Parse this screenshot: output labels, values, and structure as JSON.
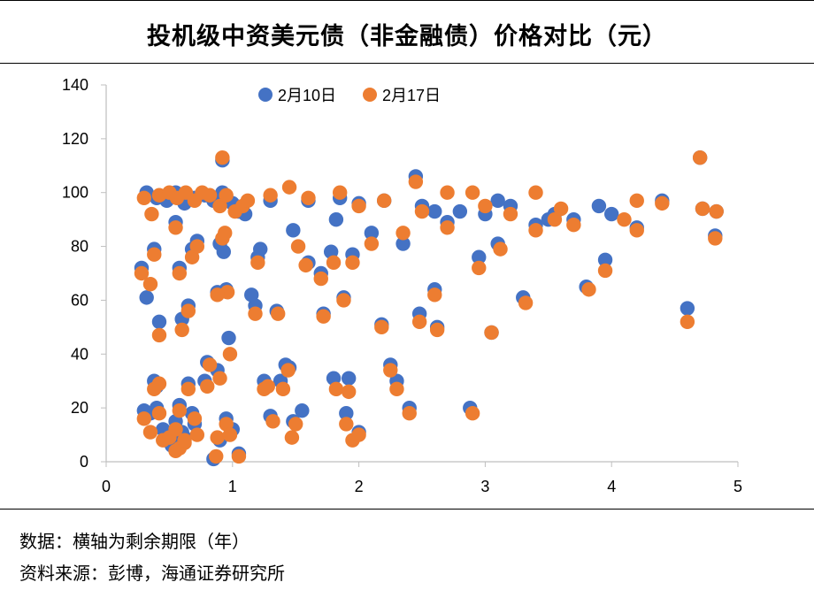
{
  "chart_data": {
    "type": "scatter",
    "title": "投机级中资美元债（非金融债）价格对比（元）",
    "xlabel": "",
    "ylabel": "",
    "xlim": [
      0,
      5
    ],
    "ylim": [
      0,
      140
    ],
    "xticks": [
      0,
      1,
      2,
      3,
      4,
      5
    ],
    "yticks": [
      0,
      20,
      40,
      60,
      80,
      100,
      120,
      140
    ],
    "grid": false,
    "legend_position": "top-center",
    "series": [
      {
        "name": "2月10日",
        "color": "#4472C4",
        "points": [
          [
            0.28,
            72
          ],
          [
            0.32,
            61
          ],
          [
            0.38,
            79
          ],
          [
            0.42,
            52
          ],
          [
            0.38,
            30
          ],
          [
            0.4,
            28
          ],
          [
            0.3,
            19
          ],
          [
            0.35,
            18
          ],
          [
            0.4,
            20
          ],
          [
            0.45,
            12
          ],
          [
            0.5,
            10
          ],
          [
            0.55,
            15
          ],
          [
            0.58,
            21
          ],
          [
            0.62,
            9
          ],
          [
            0.65,
            29
          ],
          [
            0.68,
            18
          ],
          [
            0.7,
            14
          ],
          [
            0.55,
            8
          ],
          [
            0.6,
            11
          ],
          [
            0.52,
            6
          ],
          [
            0.55,
            89
          ],
          [
            0.6,
            53
          ],
          [
            0.65,
            58
          ],
          [
            0.68,
            79
          ],
          [
            0.58,
            72
          ],
          [
            0.72,
            82
          ],
          [
            0.78,
            30
          ],
          [
            0.8,
            37
          ],
          [
            0.88,
            34
          ],
          [
            0.9,
            8
          ],
          [
            0.85,
            1
          ],
          [
            0.9,
            81
          ],
          [
            0.92,
            112
          ],
          [
            0.93,
            78
          ],
          [
            0.95,
            64
          ],
          [
            0.88,
            63
          ],
          [
            0.97,
            46
          ],
          [
            0.95,
            16
          ],
          [
            1.0,
            12
          ],
          [
            1.05,
            3
          ],
          [
            0.32,
            100
          ],
          [
            0.4,
            98
          ],
          [
            0.48,
            97
          ],
          [
            0.55,
            100
          ],
          [
            0.62,
            96
          ],
          [
            0.7,
            98
          ],
          [
            0.78,
            99
          ],
          [
            0.85,
            97
          ],
          [
            0.92,
            100
          ],
          [
            1.0,
            96
          ],
          [
            1.05,
            93
          ],
          [
            1.1,
            92
          ],
          [
            1.15,
            62
          ],
          [
            1.18,
            58
          ],
          [
            1.2,
            76
          ],
          [
            1.22,
            79
          ],
          [
            1.25,
            30
          ],
          [
            1.3,
            17
          ],
          [
            1.35,
            56
          ],
          [
            1.38,
            30
          ],
          [
            1.42,
            36
          ],
          [
            1.45,
            35
          ],
          [
            1.48,
            15
          ],
          [
            1.55,
            19
          ],
          [
            1.48,
            86
          ],
          [
            1.6,
            74
          ],
          [
            1.7,
            70
          ],
          [
            1.72,
            55
          ],
          [
            1.78,
            78
          ],
          [
            1.8,
            31
          ],
          [
            1.82,
            90
          ],
          [
            1.85,
            98
          ],
          [
            1.88,
            61
          ],
          [
            1.9,
            18
          ],
          [
            1.92,
            31
          ],
          [
            1.95,
            77
          ],
          [
            2.0,
            11
          ],
          [
            2.1,
            85
          ],
          [
            2.18,
            51
          ],
          [
            2.25,
            36
          ],
          [
            2.3,
            30
          ],
          [
            2.35,
            81
          ],
          [
            2.4,
            20
          ],
          [
            2.45,
            106
          ],
          [
            2.48,
            55
          ],
          [
            2.6,
            64
          ],
          [
            2.62,
            50
          ],
          [
            2.7,
            89
          ],
          [
            2.88,
            20
          ],
          [
            2.95,
            76
          ],
          [
            3.05,
            48
          ],
          [
            3.1,
            81
          ],
          [
            3.1,
            97
          ],
          [
            3.2,
            95
          ],
          [
            3.3,
            61
          ],
          [
            3.4,
            88
          ],
          [
            3.55,
            92
          ],
          [
            3.7,
            90
          ],
          [
            3.8,
            65
          ],
          [
            3.9,
            95
          ],
          [
            3.95,
            75
          ],
          [
            4.0,
            92
          ],
          [
            4.2,
            87
          ],
          [
            4.4,
            97
          ],
          [
            4.6,
            57
          ],
          [
            4.7,
            113
          ],
          [
            4.72,
            94
          ],
          [
            4.82,
            84
          ],
          [
            4.83,
            93
          ],
          [
            2.8,
            93
          ],
          [
            1.3,
            97
          ],
          [
            1.6,
            97
          ],
          [
            2.0,
            96
          ],
          [
            2.2,
            97
          ],
          [
            2.5,
            95
          ],
          [
            2.6,
            93
          ],
          [
            3.0,
            92
          ],
          [
            3.5,
            90
          ]
        ]
      },
      {
        "name": "2月17日",
        "color": "#ED7D31",
        "points": [
          [
            0.28,
            70
          ],
          [
            0.35,
            66
          ],
          [
            0.38,
            77
          ],
          [
            0.42,
            47
          ],
          [
            0.38,
            27
          ],
          [
            0.42,
            29
          ],
          [
            0.3,
            16
          ],
          [
            0.35,
            11
          ],
          [
            0.42,
            18
          ],
          [
            0.45,
            8
          ],
          [
            0.5,
            9
          ],
          [
            0.55,
            12
          ],
          [
            0.58,
            19
          ],
          [
            0.62,
            7
          ],
          [
            0.65,
            27
          ],
          [
            0.7,
            16
          ],
          [
            0.72,
            10
          ],
          [
            0.58,
            5
          ],
          [
            0.62,
            8
          ],
          [
            0.55,
            4
          ],
          [
            0.55,
            87
          ],
          [
            0.6,
            49
          ],
          [
            0.65,
            56
          ],
          [
            0.68,
            76
          ],
          [
            0.58,
            70
          ],
          [
            0.72,
            80
          ],
          [
            0.8,
            28
          ],
          [
            0.82,
            36
          ],
          [
            0.9,
            31
          ],
          [
            0.88,
            9
          ],
          [
            0.87,
            2
          ],
          [
            0.92,
            83
          ],
          [
            0.92,
            113
          ],
          [
            0.94,
            85
          ],
          [
            0.96,
            63
          ],
          [
            0.88,
            62
          ],
          [
            0.98,
            40
          ],
          [
            0.95,
            14
          ],
          [
            0.98,
            10
          ],
          [
            1.05,
            2
          ],
          [
            0.3,
            98
          ],
          [
            0.36,
            92
          ],
          [
            0.42,
            99
          ],
          [
            0.5,
            100
          ],
          [
            0.56,
            98
          ],
          [
            0.63,
            100
          ],
          [
            0.7,
            97
          ],
          [
            0.76,
            100
          ],
          [
            0.82,
            99
          ],
          [
            0.9,
            95
          ],
          [
            0.95,
            99
          ],
          [
            1.02,
            93
          ],
          [
            1.08,
            95
          ],
          [
            1.12,
            97
          ],
          [
            1.18,
            55
          ],
          [
            1.2,
            74
          ],
          [
            1.25,
            27
          ],
          [
            1.28,
            28
          ],
          [
            1.32,
            15
          ],
          [
            1.36,
            55
          ],
          [
            1.4,
            27
          ],
          [
            1.44,
            34
          ],
          [
            1.47,
            9
          ],
          [
            1.5,
            14
          ],
          [
            1.52,
            80
          ],
          [
            1.58,
            73
          ],
          [
            1.7,
            68
          ],
          [
            1.72,
            54
          ],
          [
            1.8,
            74
          ],
          [
            1.82,
            27
          ],
          [
            1.85,
            100
          ],
          [
            1.88,
            60
          ],
          [
            1.9,
            14
          ],
          [
            1.92,
            26
          ],
          [
            1.95,
            74
          ],
          [
            1.95,
            8
          ],
          [
            2.0,
            10
          ],
          [
            2.1,
            81
          ],
          [
            2.18,
            50
          ],
          [
            2.25,
            34
          ],
          [
            2.3,
            27
          ],
          [
            2.35,
            85
          ],
          [
            2.4,
            18
          ],
          [
            2.45,
            104
          ],
          [
            2.48,
            52
          ],
          [
            2.6,
            62
          ],
          [
            2.62,
            49
          ],
          [
            2.7,
            87
          ],
          [
            2.9,
            18
          ],
          [
            2.95,
            72
          ],
          [
            3.05,
            48
          ],
          [
            3.12,
            79
          ],
          [
            3.2,
            92
          ],
          [
            3.32,
            59
          ],
          [
            3.4,
            86
          ],
          [
            3.55,
            90
          ],
          [
            3.7,
            88
          ],
          [
            3.82,
            64
          ],
          [
            3.95,
            71
          ],
          [
            4.1,
            90
          ],
          [
            4.2,
            86
          ],
          [
            4.4,
            96
          ],
          [
            4.6,
            52
          ],
          [
            4.7,
            113
          ],
          [
            4.72,
            94
          ],
          [
            4.82,
            83
          ],
          [
            4.83,
            93
          ],
          [
            1.45,
            102
          ],
          [
            2.9,
            100
          ],
          [
            3.4,
            100
          ],
          [
            1.3,
            99
          ],
          [
            1.6,
            98
          ],
          [
            2.0,
            95
          ],
          [
            2.2,
            97
          ],
          [
            2.5,
            93
          ],
          [
            2.7,
            100
          ],
          [
            3.0,
            95
          ],
          [
            3.6,
            94
          ],
          [
            4.2,
            97
          ]
        ]
      }
    ]
  },
  "footer": {
    "note": "数据：横轴为剩余期限（年）",
    "source": "资料来源：彭博，海通证券研究所"
  }
}
